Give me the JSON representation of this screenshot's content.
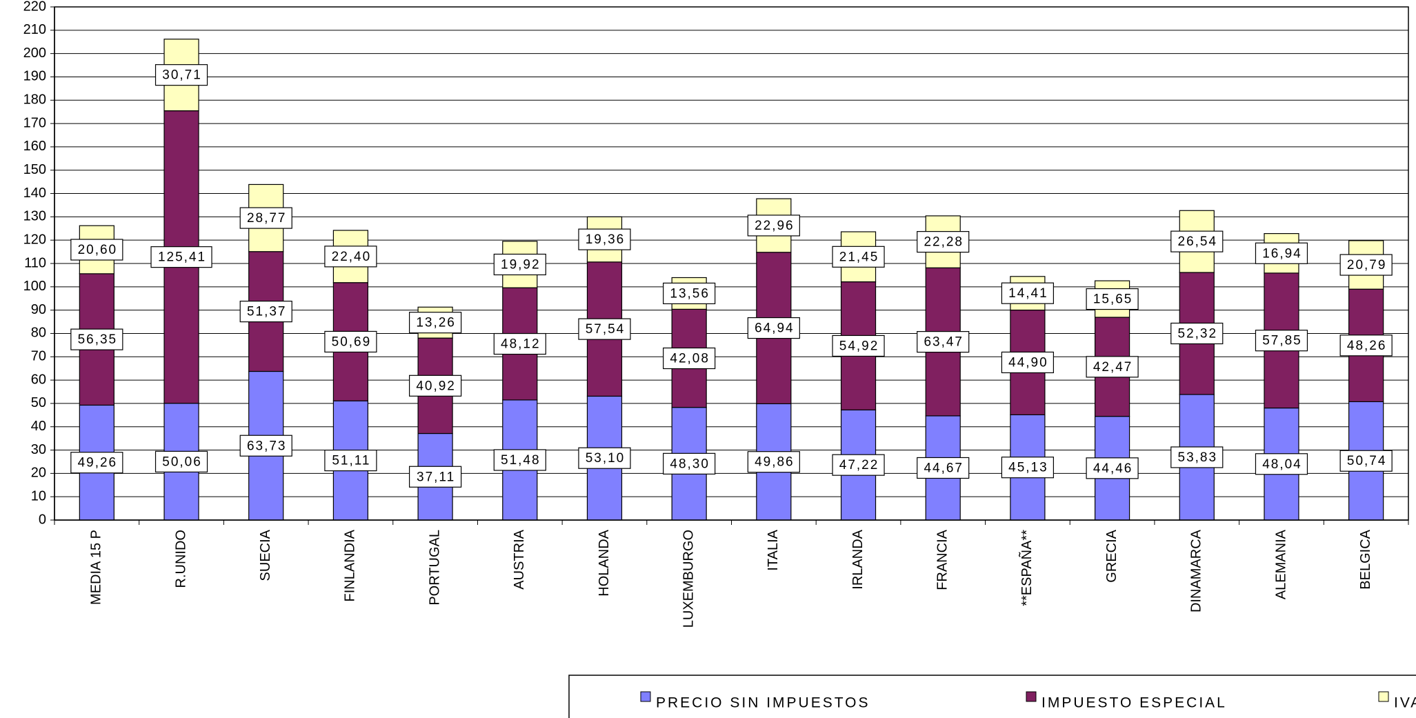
{
  "chart_data": {
    "type": "stacked_bar",
    "categories": [
      "MEDIA 15 P",
      "R.UNIDO",
      "SUECIA",
      "FINLANDIA",
      "PORTUGAL",
      "AUSTRIA",
      "HOLANDA",
      "LUXEMBURGO",
      "ITALIA",
      "IRLANDA",
      "FRANCIA",
      "**ESPAÑA**",
      "GRECIA",
      "DINAMARCA",
      "ALEMANIA",
      "BELGICA"
    ],
    "series": [
      {
        "name": "PRECIO SIN IMPUESTOS",
        "color": "#8080ff",
        "values": [
          49.26,
          50.06,
          63.73,
          51.11,
          37.11,
          51.48,
          53.1,
          48.3,
          49.86,
          47.22,
          44.67,
          45.13,
          44.46,
          53.83,
          48.04,
          50.74
        ],
        "value_labels": [
          "49,26",
          "50,06",
          "63,73",
          "51,11",
          "37,11",
          "51,48",
          "53,10",
          "48,30",
          "49,86",
          "47,22",
          "44,67",
          "45,13",
          "44,46",
          "53,83",
          "48,04",
          "50,74"
        ]
      },
      {
        "name": "IMPUESTO ESPECIAL",
        "color": "#802060",
        "values": [
          56.35,
          125.41,
          51.37,
          50.69,
          40.92,
          48.12,
          57.54,
          42.08,
          64.94,
          54.92,
          63.47,
          44.9,
          42.47,
          52.32,
          57.85,
          48.26
        ],
        "value_labels": [
          "56,35",
          "125,41",
          "51,37",
          "50,69",
          "40,92",
          "48,12",
          "57,54",
          "42,08",
          "64,94",
          "54,92",
          "63,47",
          "44,90",
          "42,47",
          "52,32",
          "57,85",
          "48,26"
        ]
      },
      {
        "name": "IVA",
        "color": "#ffffc0",
        "values": [
          20.6,
          30.71,
          28.77,
          22.4,
          13.26,
          19.92,
          19.36,
          13.56,
          22.96,
          21.45,
          22.28,
          14.41,
          15.65,
          26.54,
          16.94,
          20.79
        ],
        "value_labels": [
          "20,60",
          "30,71",
          "28,77",
          "22,40",
          "13,26",
          "19,92",
          "19,36",
          "13,56",
          "22,96",
          "21,45",
          "22,28",
          "14,41",
          "15,65",
          "26,54",
          "16,94",
          "20,79"
        ]
      }
    ],
    "ylim": [
      0,
      220
    ],
    "yticks": [
      0,
      10,
      20,
      30,
      40,
      50,
      60,
      70,
      80,
      90,
      100,
      110,
      120,
      130,
      140,
      150,
      160,
      170,
      180,
      190,
      200,
      210,
      220
    ],
    "grid": true,
    "legend": "bottom"
  }
}
